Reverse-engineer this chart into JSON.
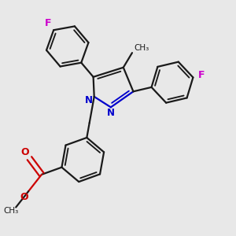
{
  "bg_color": "#e8e8e8",
  "bond_color": "#1a1a1a",
  "nitrogen_color": "#0000cc",
  "oxygen_color": "#cc0000",
  "fluorine_color": "#cc00cc",
  "bond_width": 1.6,
  "dbo": 0.055,
  "figsize": [
    3.0,
    3.0
  ],
  "dpi": 100,
  "xlim": [
    -1.6,
    2.4
  ],
  "ylim": [
    -2.8,
    1.6
  ]
}
